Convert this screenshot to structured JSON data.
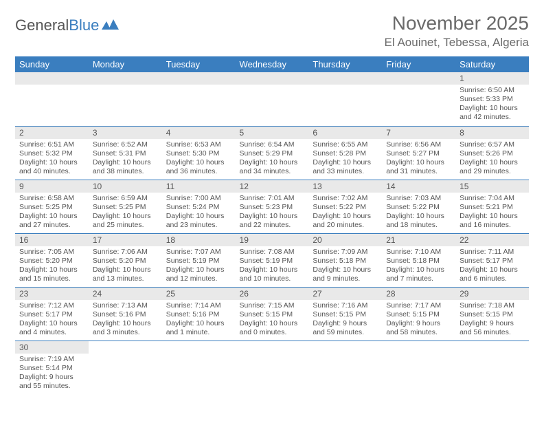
{
  "brand": {
    "part1": "General",
    "part2": "Blue"
  },
  "title": "November 2025",
  "location": "El Aouinet, Tebessa, Algeria",
  "colors": {
    "header_bg": "#3a7ebf",
    "header_text": "#ffffff",
    "daynum_bg": "#e9e9e9",
    "text": "#555555",
    "row_border": "#3a7ebf"
  },
  "weekdays": [
    "Sunday",
    "Monday",
    "Tuesday",
    "Wednesday",
    "Thursday",
    "Friday",
    "Saturday"
  ],
  "weeks": [
    [
      null,
      null,
      null,
      null,
      null,
      null,
      {
        "n": "1",
        "sr": "Sunrise: 6:50 AM",
        "ss": "Sunset: 5:33 PM",
        "d1": "Daylight: 10 hours",
        "d2": "and 42 minutes."
      }
    ],
    [
      {
        "n": "2",
        "sr": "Sunrise: 6:51 AM",
        "ss": "Sunset: 5:32 PM",
        "d1": "Daylight: 10 hours",
        "d2": "and 40 minutes."
      },
      {
        "n": "3",
        "sr": "Sunrise: 6:52 AM",
        "ss": "Sunset: 5:31 PM",
        "d1": "Daylight: 10 hours",
        "d2": "and 38 minutes."
      },
      {
        "n": "4",
        "sr": "Sunrise: 6:53 AM",
        "ss": "Sunset: 5:30 PM",
        "d1": "Daylight: 10 hours",
        "d2": "and 36 minutes."
      },
      {
        "n": "5",
        "sr": "Sunrise: 6:54 AM",
        "ss": "Sunset: 5:29 PM",
        "d1": "Daylight: 10 hours",
        "d2": "and 34 minutes."
      },
      {
        "n": "6",
        "sr": "Sunrise: 6:55 AM",
        "ss": "Sunset: 5:28 PM",
        "d1": "Daylight: 10 hours",
        "d2": "and 33 minutes."
      },
      {
        "n": "7",
        "sr": "Sunrise: 6:56 AM",
        "ss": "Sunset: 5:27 PM",
        "d1": "Daylight: 10 hours",
        "d2": "and 31 minutes."
      },
      {
        "n": "8",
        "sr": "Sunrise: 6:57 AM",
        "ss": "Sunset: 5:26 PM",
        "d1": "Daylight: 10 hours",
        "d2": "and 29 minutes."
      }
    ],
    [
      {
        "n": "9",
        "sr": "Sunrise: 6:58 AM",
        "ss": "Sunset: 5:25 PM",
        "d1": "Daylight: 10 hours",
        "d2": "and 27 minutes."
      },
      {
        "n": "10",
        "sr": "Sunrise: 6:59 AM",
        "ss": "Sunset: 5:25 PM",
        "d1": "Daylight: 10 hours",
        "d2": "and 25 minutes."
      },
      {
        "n": "11",
        "sr": "Sunrise: 7:00 AM",
        "ss": "Sunset: 5:24 PM",
        "d1": "Daylight: 10 hours",
        "d2": "and 23 minutes."
      },
      {
        "n": "12",
        "sr": "Sunrise: 7:01 AM",
        "ss": "Sunset: 5:23 PM",
        "d1": "Daylight: 10 hours",
        "d2": "and 22 minutes."
      },
      {
        "n": "13",
        "sr": "Sunrise: 7:02 AM",
        "ss": "Sunset: 5:22 PM",
        "d1": "Daylight: 10 hours",
        "d2": "and 20 minutes."
      },
      {
        "n": "14",
        "sr": "Sunrise: 7:03 AM",
        "ss": "Sunset: 5:22 PM",
        "d1": "Daylight: 10 hours",
        "d2": "and 18 minutes."
      },
      {
        "n": "15",
        "sr": "Sunrise: 7:04 AM",
        "ss": "Sunset: 5:21 PM",
        "d1": "Daylight: 10 hours",
        "d2": "and 16 minutes."
      }
    ],
    [
      {
        "n": "16",
        "sr": "Sunrise: 7:05 AM",
        "ss": "Sunset: 5:20 PM",
        "d1": "Daylight: 10 hours",
        "d2": "and 15 minutes."
      },
      {
        "n": "17",
        "sr": "Sunrise: 7:06 AM",
        "ss": "Sunset: 5:20 PM",
        "d1": "Daylight: 10 hours",
        "d2": "and 13 minutes."
      },
      {
        "n": "18",
        "sr": "Sunrise: 7:07 AM",
        "ss": "Sunset: 5:19 PM",
        "d1": "Daylight: 10 hours",
        "d2": "and 12 minutes."
      },
      {
        "n": "19",
        "sr": "Sunrise: 7:08 AM",
        "ss": "Sunset: 5:19 PM",
        "d1": "Daylight: 10 hours",
        "d2": "and 10 minutes."
      },
      {
        "n": "20",
        "sr": "Sunrise: 7:09 AM",
        "ss": "Sunset: 5:18 PM",
        "d1": "Daylight: 10 hours",
        "d2": "and 9 minutes."
      },
      {
        "n": "21",
        "sr": "Sunrise: 7:10 AM",
        "ss": "Sunset: 5:18 PM",
        "d1": "Daylight: 10 hours",
        "d2": "and 7 minutes."
      },
      {
        "n": "22",
        "sr": "Sunrise: 7:11 AM",
        "ss": "Sunset: 5:17 PM",
        "d1": "Daylight: 10 hours",
        "d2": "and 6 minutes."
      }
    ],
    [
      {
        "n": "23",
        "sr": "Sunrise: 7:12 AM",
        "ss": "Sunset: 5:17 PM",
        "d1": "Daylight: 10 hours",
        "d2": "and 4 minutes."
      },
      {
        "n": "24",
        "sr": "Sunrise: 7:13 AM",
        "ss": "Sunset: 5:16 PM",
        "d1": "Daylight: 10 hours",
        "d2": "and 3 minutes."
      },
      {
        "n": "25",
        "sr": "Sunrise: 7:14 AM",
        "ss": "Sunset: 5:16 PM",
        "d1": "Daylight: 10 hours",
        "d2": "and 1 minute."
      },
      {
        "n": "26",
        "sr": "Sunrise: 7:15 AM",
        "ss": "Sunset: 5:15 PM",
        "d1": "Daylight: 10 hours",
        "d2": "and 0 minutes."
      },
      {
        "n": "27",
        "sr": "Sunrise: 7:16 AM",
        "ss": "Sunset: 5:15 PM",
        "d1": "Daylight: 9 hours",
        "d2": "and 59 minutes."
      },
      {
        "n": "28",
        "sr": "Sunrise: 7:17 AM",
        "ss": "Sunset: 5:15 PM",
        "d1": "Daylight: 9 hours",
        "d2": "and 58 minutes."
      },
      {
        "n": "29",
        "sr": "Sunrise: 7:18 AM",
        "ss": "Sunset: 5:15 PM",
        "d1": "Daylight: 9 hours",
        "d2": "and 56 minutes."
      }
    ],
    [
      {
        "n": "30",
        "sr": "Sunrise: 7:19 AM",
        "ss": "Sunset: 5:14 PM",
        "d1": "Daylight: 9 hours",
        "d2": "and 55 minutes."
      },
      null,
      null,
      null,
      null,
      null,
      null
    ]
  ]
}
